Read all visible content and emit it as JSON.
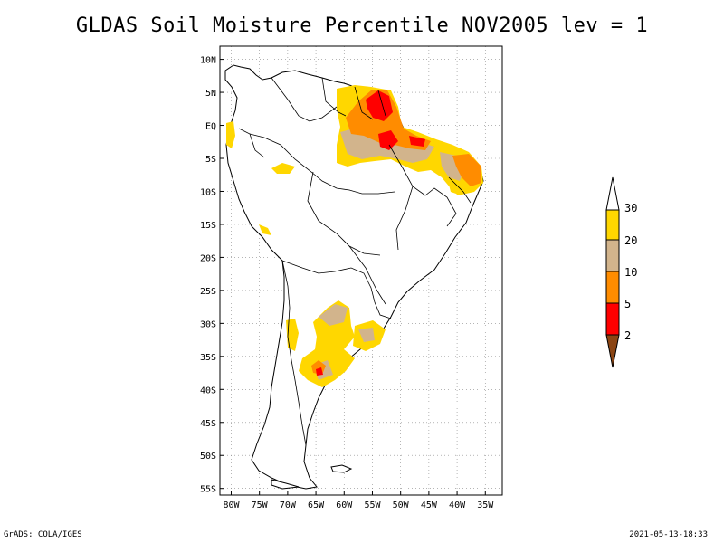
{
  "title": "GLDAS Soil Moisture Percentile NOV2005 lev = 1",
  "footer": {
    "left": "GrADS: COLA/IGES",
    "right": "2021-05-13-18:33"
  },
  "colors": {
    "c_lt2": "#8b4513",
    "c_2_5": "#ff0000",
    "c_5_10": "#ff8c00",
    "c_10_20": "#d2b48c",
    "c_20_30": "#ffd700",
    "c_gt30": "#ffffff"
  },
  "chart_data": {
    "type": "heatmap",
    "lon_range": [
      -82,
      -32
    ],
    "lat_range": [
      -56,
      12
    ],
    "x_ticks": [
      "80W",
      "75W",
      "70W",
      "65W",
      "60W",
      "55W",
      "50W",
      "45W",
      "40W",
      "35W"
    ],
    "y_ticks": [
      "10N",
      "5N",
      "EQ",
      "5S",
      "10S",
      "15S",
      "20S",
      "25S",
      "30S",
      "35S",
      "40S",
      "45S",
      "50S",
      "55S"
    ],
    "legend": {
      "placement": "right",
      "labels": [
        "2",
        "5",
        "10",
        "20",
        "30"
      ]
    },
    "grid": true
  }
}
